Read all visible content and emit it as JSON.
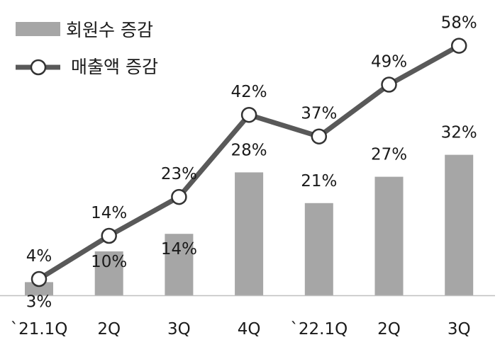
{
  "chart_data": {
    "type": "bar",
    "categories": [
      "`21.1Q",
      "2Q",
      "3Q",
      "4Q",
      "`22.1Q",
      "2Q",
      "3Q"
    ],
    "series": [
      {
        "name": "회원수 증감",
        "type": "bar",
        "values": [
          3,
          10,
          14,
          28,
          21,
          27,
          32
        ],
        "labels": [
          "3%",
          "10%",
          "14%",
          "28%",
          "21%",
          "27%",
          "32%"
        ],
        "color": "#a6a6a6"
      },
      {
        "name": "매출액 증감",
        "type": "line",
        "values": [
          4,
          14,
          23,
          42,
          37,
          49,
          58
        ],
        "labels": [
          "4%",
          "14%",
          "23%",
          "42%",
          "37%",
          "49%",
          "58%"
        ],
        "color": "#595959"
      }
    ],
    "legend": "top-left",
    "grid": false
  }
}
